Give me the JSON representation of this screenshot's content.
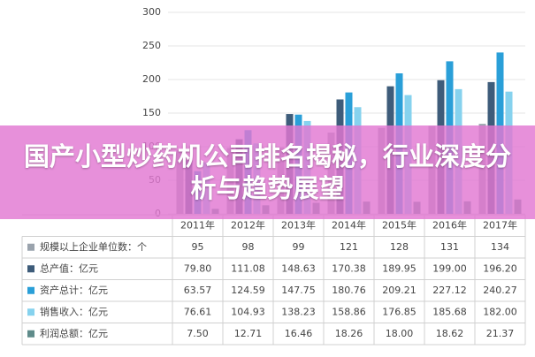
{
  "chart_data": {
    "type": "bar",
    "title": "国产小型炒药机公司排名揭秘，行业深度分析与趋势展望",
    "categories": [
      "2011年",
      "2012年",
      "2013年",
      "2014年",
      "2015年",
      "2016年",
      "2017年"
    ],
    "series": [
      {
        "name": "规模以上企业单位数：个",
        "color": "#9aa3ad",
        "values": [
          95,
          98,
          99,
          121,
          128,
          131,
          134
        ],
        "value_labels": [
          "95",
          "98",
          "99",
          "121",
          "128",
          "131",
          "134"
        ]
      },
      {
        "name": "总产值：亿元",
        "color": "#3e5c7a",
        "values": [
          79.8,
          111.08,
          148.63,
          170.38,
          189.95,
          199,
          196.2
        ],
        "value_labels": [
          "79.80",
          "111.08",
          "148.63",
          "170.38",
          "189.95",
          "199.00",
          "196.20"
        ]
      },
      {
        "name": "资产总计：亿元",
        "color": "#2a9fd8",
        "values": [
          63.57,
          124.59,
          147.75,
          180.76,
          209.21,
          227.12,
          240.27
        ],
        "value_labels": [
          "63.57",
          "124.59",
          "147.75",
          "180.76",
          "209.21",
          "227.12",
          "240.27"
        ]
      },
      {
        "name": "销售收入：亿元",
        "color": "#86d2ee",
        "values": [
          76.61,
          104.93,
          138.23,
          158.86,
          176.85,
          185.68,
          182
        ],
        "value_labels": [
          "76.61",
          "104.93",
          "138.23",
          "158.86",
          "176.85",
          "185.68",
          "182.00"
        ]
      },
      {
        "name": "利润总额：亿元",
        "color": "#5f8b8a",
        "values": [
          7.5,
          12.71,
          16.46,
          18.26,
          18,
          18.62,
          21.37
        ],
        "value_labels": [
          "7.50",
          "12.71",
          "16.46",
          "18.26",
          "18.00",
          "18.62",
          "21.37"
        ]
      }
    ],
    "ylim": [
      0,
      300
    ],
    "yticks": [
      0,
      50,
      100,
      150,
      200,
      250,
      300
    ],
    "grid": true
  }
}
